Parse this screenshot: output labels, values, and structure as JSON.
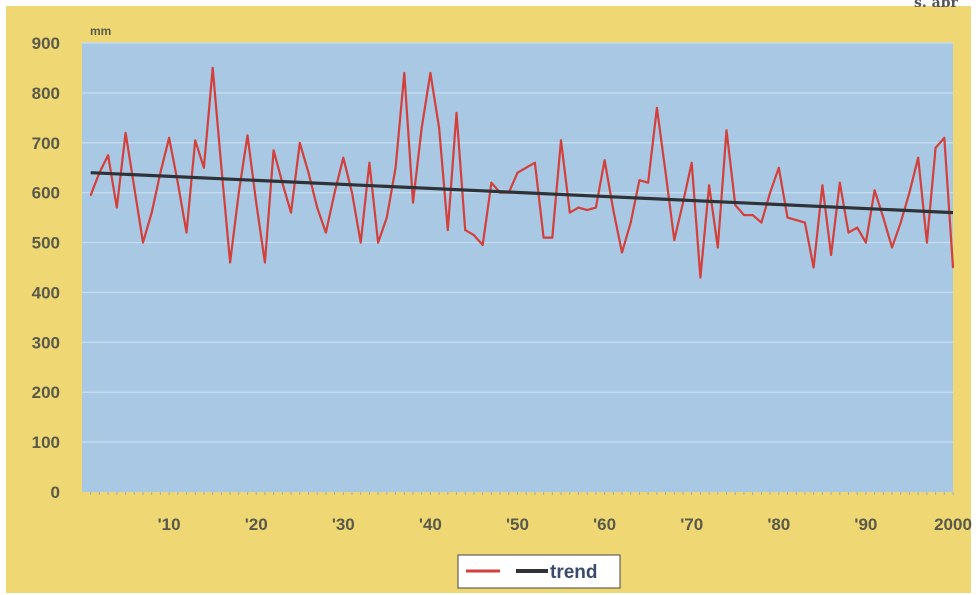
{
  "corner_text": "s. abr",
  "colors": {
    "frame": "#efd873",
    "plot": "#a8c8e4",
    "grid": "#c4dcef",
    "series": "#d43f3a",
    "trend": "#2f3236",
    "legend_bg": "#ffffff",
    "legend_border": "#444444"
  },
  "chart_data": {
    "type": "line",
    "ylabel": "mm",
    "ylim": [
      0,
      900
    ],
    "yticks": [
      0,
      100,
      200,
      300,
      400,
      500,
      600,
      700,
      800,
      900
    ],
    "ytick_labels": [
      "0",
      "100",
      "200",
      "300",
      "400",
      "500",
      "600",
      "700",
      "800",
      "900"
    ],
    "xlim": [
      1900,
      2000
    ],
    "xticks": [
      1910,
      1920,
      1930,
      1940,
      1950,
      1960,
      1970,
      1980,
      1990,
      2000
    ],
    "xtick_labels": [
      "'10",
      "'20",
      "'30",
      "'40",
      "'50",
      "'60",
      "'70",
      "'80",
      "'90",
      "2000"
    ],
    "grid": true,
    "legend_position": "bottom-center",
    "series": [
      {
        "name": "",
        "color": "#d43f3a",
        "x": [
          1901,
          1902,
          1903,
          1904,
          1905,
          1906,
          1907,
          1908,
          1909,
          1910,
          1911,
          1912,
          1913,
          1914,
          1915,
          1916,
          1917,
          1918,
          1919,
          1920,
          1921,
          1922,
          1923,
          1924,
          1925,
          1926,
          1927,
          1928,
          1929,
          1930,
          1931,
          1932,
          1933,
          1934,
          1935,
          1936,
          1937,
          1938,
          1939,
          1940,
          1941,
          1942,
          1943,
          1944,
          1945,
          1946,
          1947,
          1948,
          1949,
          1950,
          1951,
          1952,
          1953,
          1954,
          1955,
          1956,
          1957,
          1958,
          1959,
          1960,
          1961,
          1962,
          1963,
          1964,
          1965,
          1966,
          1967,
          1968,
          1969,
          1970,
          1971,
          1972,
          1973,
          1974,
          1975,
          1976,
          1977,
          1978,
          1979,
          1980,
          1981,
          1982,
          1983,
          1984,
          1985,
          1986,
          1987,
          1988,
          1989,
          1990,
          1991,
          1992,
          1993,
          1994,
          1995,
          1996,
          1997,
          1998,
          1999,
          2000
        ],
        "values": [
          595,
          640,
          675,
          570,
          720,
          610,
          500,
          560,
          640,
          710,
          620,
          520,
          705,
          650,
          850,
          650,
          460,
          600,
          715,
          580,
          460,
          685,
          620,
          560,
          700,
          640,
          570,
          520,
          600,
          670,
          600,
          500,
          660,
          500,
          550,
          650,
          840,
          580,
          730,
          840,
          730,
          525,
          760,
          525,
          515,
          495,
          620,
          600,
          600,
          640,
          650,
          660,
          510,
          510,
          705,
          560,
          570,
          565,
          570,
          665,
          565,
          480,
          540,
          625,
          620,
          770,
          640,
          505,
          580,
          660,
          430,
          615,
          490,
          725,
          575,
          555,
          555,
          540,
          600,
          650,
          550,
          545,
          540,
          450,
          615,
          475,
          620,
          520,
          530,
          500,
          605,
          550,
          490,
          540,
          600,
          670,
          500,
          690,
          710,
          450
        ]
      },
      {
        "name": "trend",
        "color": "#2f3236",
        "x": [
          1901,
          2000
        ],
        "values": [
          640,
          560
        ]
      }
    ]
  }
}
